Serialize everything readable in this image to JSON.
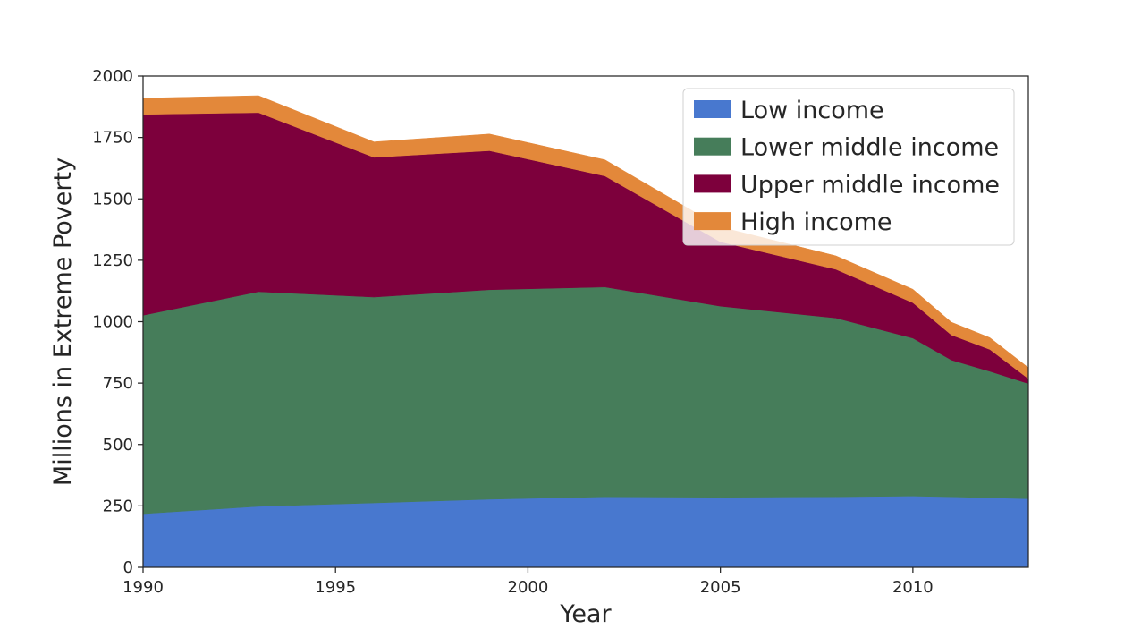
{
  "chart_data": {
    "type": "area",
    "stacked": true,
    "title": "",
    "xlabel": "Year",
    "ylabel": "Millions in Extreme Poverty",
    "xlim": [
      1990,
      2013
    ],
    "ylim": [
      0,
      2000
    ],
    "x_ticks": [
      "1990",
      "1995",
      "2000",
      "2005",
      "2010"
    ],
    "y_ticks": [
      "0",
      "250",
      "500",
      "750",
      "1000",
      "1250",
      "1500",
      "1750",
      "2000"
    ],
    "grid": false,
    "legend_position": "top-right",
    "x": [
      1990,
      1993,
      1996,
      1999,
      2002,
      2005,
      2008,
      2010,
      2011,
      2012,
      2013
    ],
    "series": [
      {
        "name": "Low income",
        "color": "#4878cf",
        "values": [
          218,
          248,
          262,
          277,
          287,
          285,
          287,
          290,
          287,
          283,
          279
        ]
      },
      {
        "name": "Lower middle income",
        "color": "#467d5a",
        "values": [
          808,
          874,
          838,
          853,
          854,
          778,
          728,
          643,
          557,
          515,
          469
        ]
      },
      {
        "name": "Upper middle income",
        "color": "#7d003c",
        "values": [
          818,
          729,
          569,
          566,
          452,
          262,
          198,
          144,
          102,
          89,
          20
        ]
      },
      {
        "name": "High income",
        "color": "#e3883a",
        "values": [
          66,
          69,
          63,
          68,
          66,
          60,
          55,
          55,
          52,
          48,
          45
        ]
      }
    ]
  }
}
